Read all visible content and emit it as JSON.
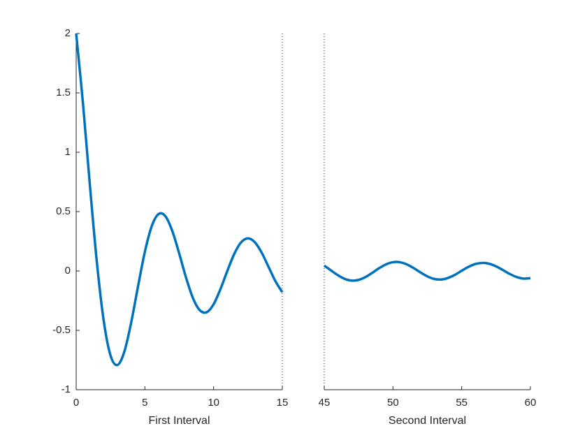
{
  "chart_data": {
    "type": "line",
    "color": "#0072bd",
    "ylim": [
      -1,
      2
    ],
    "yticks": [
      -1,
      -0.5,
      0,
      0.5,
      1,
      1.5,
      2
    ],
    "panels": [
      {
        "xlabel": "First Interval",
        "xlim": [
          0,
          15
        ],
        "xticks": [
          0,
          5,
          10,
          15
        ],
        "x": [
          0,
          0.5,
          1,
          1.5,
          2,
          2.5,
          3,
          3.5,
          4,
          4.5,
          5,
          5.5,
          6,
          6.5,
          7,
          7.5,
          8,
          8.5,
          9,
          9.5,
          10,
          10.5,
          11,
          11.5,
          12,
          12.5,
          13,
          13.5,
          14,
          14.5,
          15
        ],
        "values": [
          2,
          1.404,
          0.72,
          0.081,
          -0.416,
          -0.712,
          -0.792,
          -0.681,
          -0.436,
          -0.13,
          0.162,
          0.378,
          0.48,
          0.46,
          0.335,
          0.146,
          -0.058,
          -0.229,
          -0.331,
          -0.347,
          -0.28,
          -0.152,
          0.001,
          0.143,
          0.241,
          0.275,
          0.242,
          0.154,
          0.034,
          -0.086,
          -0.179
        ]
      },
      {
        "xlabel": "Second Interval",
        "xlim": [
          45,
          60
        ],
        "xticks": [
          45,
          50,
          55,
          60
        ],
        "x": [
          45,
          45.5,
          46,
          46.5,
          47,
          47.5,
          48,
          48.5,
          49,
          49.5,
          50,
          50.5,
          51,
          51.5,
          52,
          52.5,
          53,
          53.5,
          54,
          54.5,
          55,
          55.5,
          56,
          56.5,
          57,
          57.5,
          58,
          58.5,
          59,
          59.5,
          60
        ],
        "values": [
          0.045,
          0.004,
          -0.036,
          -0.067,
          -0.081,
          -0.075,
          -0.051,
          -0.015,
          0.024,
          0.056,
          0.074,
          0.074,
          0.056,
          0.025,
          -0.012,
          -0.045,
          -0.067,
          -0.072,
          -0.059,
          -0.033,
          0.002,
          0.035,
          0.059,
          0.068,
          0.061,
          0.039,
          0.008,
          -0.025,
          -0.051,
          -0.064,
          -0.061
        ]
      }
    ]
  }
}
